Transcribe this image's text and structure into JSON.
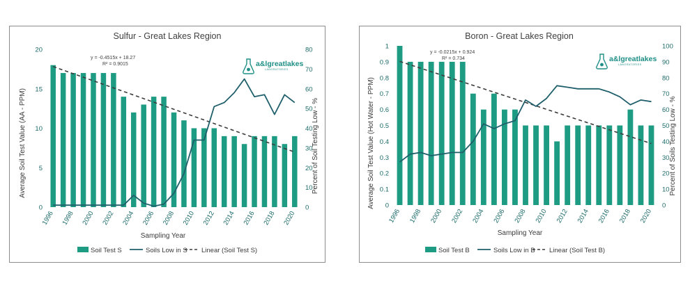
{
  "chart_data": [
    {
      "type": "bar",
      "title": "Sulfur - Great Lakes Region",
      "xlabel": "Sampling Year",
      "ylabel": "Average Soil Test Value (AA - PPM)",
      "y2label": "Percent of Soil Testing Low - %",
      "ylim": [
        0,
        20
      ],
      "y2lim": [
        0,
        80
      ],
      "yticks": [
        0,
        5,
        10,
        15,
        20
      ],
      "y2ticks": [
        0,
        10,
        20,
        30,
        40,
        50,
        60,
        70,
        80
      ],
      "years": [
        1996,
        1997,
        1998,
        1999,
        2000,
        2001,
        2002,
        2003,
        2004,
        2005,
        2006,
        2007,
        2008,
        2009,
        2010,
        2011,
        2012,
        2013,
        2014,
        2015,
        2016,
        2017,
        2018,
        2019,
        2020
      ],
      "xtick_labels": [
        "1996",
        "1998",
        "2000",
        "2002",
        "2004",
        "2006",
        "2008",
        "2010",
        "2012",
        "2014",
        "2016",
        "2018",
        "2020"
      ],
      "series": [
        {
          "name": "Soil Test S",
          "kind": "bar",
          "axis": "left",
          "values": [
            18,
            17,
            17,
            17,
            17,
            17,
            17,
            14,
            12,
            13,
            14,
            14,
            12,
            11,
            10,
            10,
            10,
            9,
            9,
            8,
            9,
            9,
            9,
            8,
            9
          ]
        },
        {
          "name": "Soils Low in S",
          "kind": "line",
          "axis": "right",
          "values": [
            1,
            1,
            1,
            1,
            1,
            1,
            1,
            1,
            6,
            2,
            0.5,
            1.5,
            7,
            17,
            34,
            34,
            51,
            53,
            58,
            65,
            56,
            57,
            47,
            57,
            53
          ]
        },
        {
          "name": "Linear (Soil Test S)",
          "kind": "trend",
          "axis": "left",
          "slope": -0.4515,
          "intercept": 18.27
        }
      ],
      "equation": "y = -0.4515x + 18.27",
      "r2": "R² = 0.9015"
    },
    {
      "type": "bar",
      "title": "Boron - Great Lakes Region",
      "xlabel": "Sampling Year",
      "ylabel": "Average Soil Test Value (Hot Water - PPM)",
      "y2label": "Percent of Soils Testing Low - %",
      "ylim": [
        0,
        1
      ],
      "y2lim": [
        0,
        100
      ],
      "yticks": [
        "0",
        "0.1",
        "0.2",
        "0.3",
        "0.4",
        "0.5",
        "0.6",
        "0.7",
        "0.8",
        "0.9",
        "1"
      ],
      "y2ticks": [
        0,
        10,
        20,
        30,
        40,
        50,
        60,
        70,
        80,
        90,
        100
      ],
      "years": [
        1996,
        1997,
        1998,
        1999,
        2000,
        2001,
        2002,
        2003,
        2004,
        2005,
        2006,
        2007,
        2008,
        2009,
        2010,
        2011,
        2012,
        2013,
        2014,
        2015,
        2016,
        2017,
        2018,
        2019,
        2020
      ],
      "xtick_labels": [
        "1996",
        "1998",
        "2000",
        "2002",
        "2004",
        "2006",
        "2008",
        "2010",
        "2012",
        "2014",
        "2016",
        "2018",
        "2020"
      ],
      "series": [
        {
          "name": "Soil Test B",
          "kind": "bar",
          "axis": "left",
          "values": [
            1.0,
            0.9,
            0.9,
            0.9,
            0.9,
            0.9,
            0.9,
            0.7,
            0.6,
            0.7,
            0.6,
            0.6,
            0.5,
            0.5,
            0.5,
            0.4,
            0.5,
            0.5,
            0.5,
            0.5,
            0.5,
            0.5,
            0.6,
            0.5,
            0.5
          ]
        },
        {
          "name": "Soils Low in B",
          "kind": "line",
          "axis": "right",
          "values": [
            27,
            32,
            33,
            31,
            32,
            33,
            33,
            40,
            51,
            48,
            51,
            53,
            66,
            62,
            67,
            75,
            74,
            73,
            73,
            73,
            71,
            68,
            63,
            66,
            65
          ]
        },
        {
          "name": "Linear (Soil Test B)",
          "kind": "trend",
          "axis": "left",
          "slope": -0.0215,
          "intercept": 0.924
        }
      ],
      "equation": "y = -0.0215x + 0.924",
      "r2": "R² = 0.734"
    }
  ],
  "logo": {
    "name": "a&lgreatlakes",
    "sub": "LABORATORIES"
  },
  "colors": {
    "bar": "#1e9c83",
    "line": "#1f5f6b",
    "trend": "#3c3c3c",
    "axis_text": "#1f6b6b",
    "frame": "#8c8c8c"
  }
}
